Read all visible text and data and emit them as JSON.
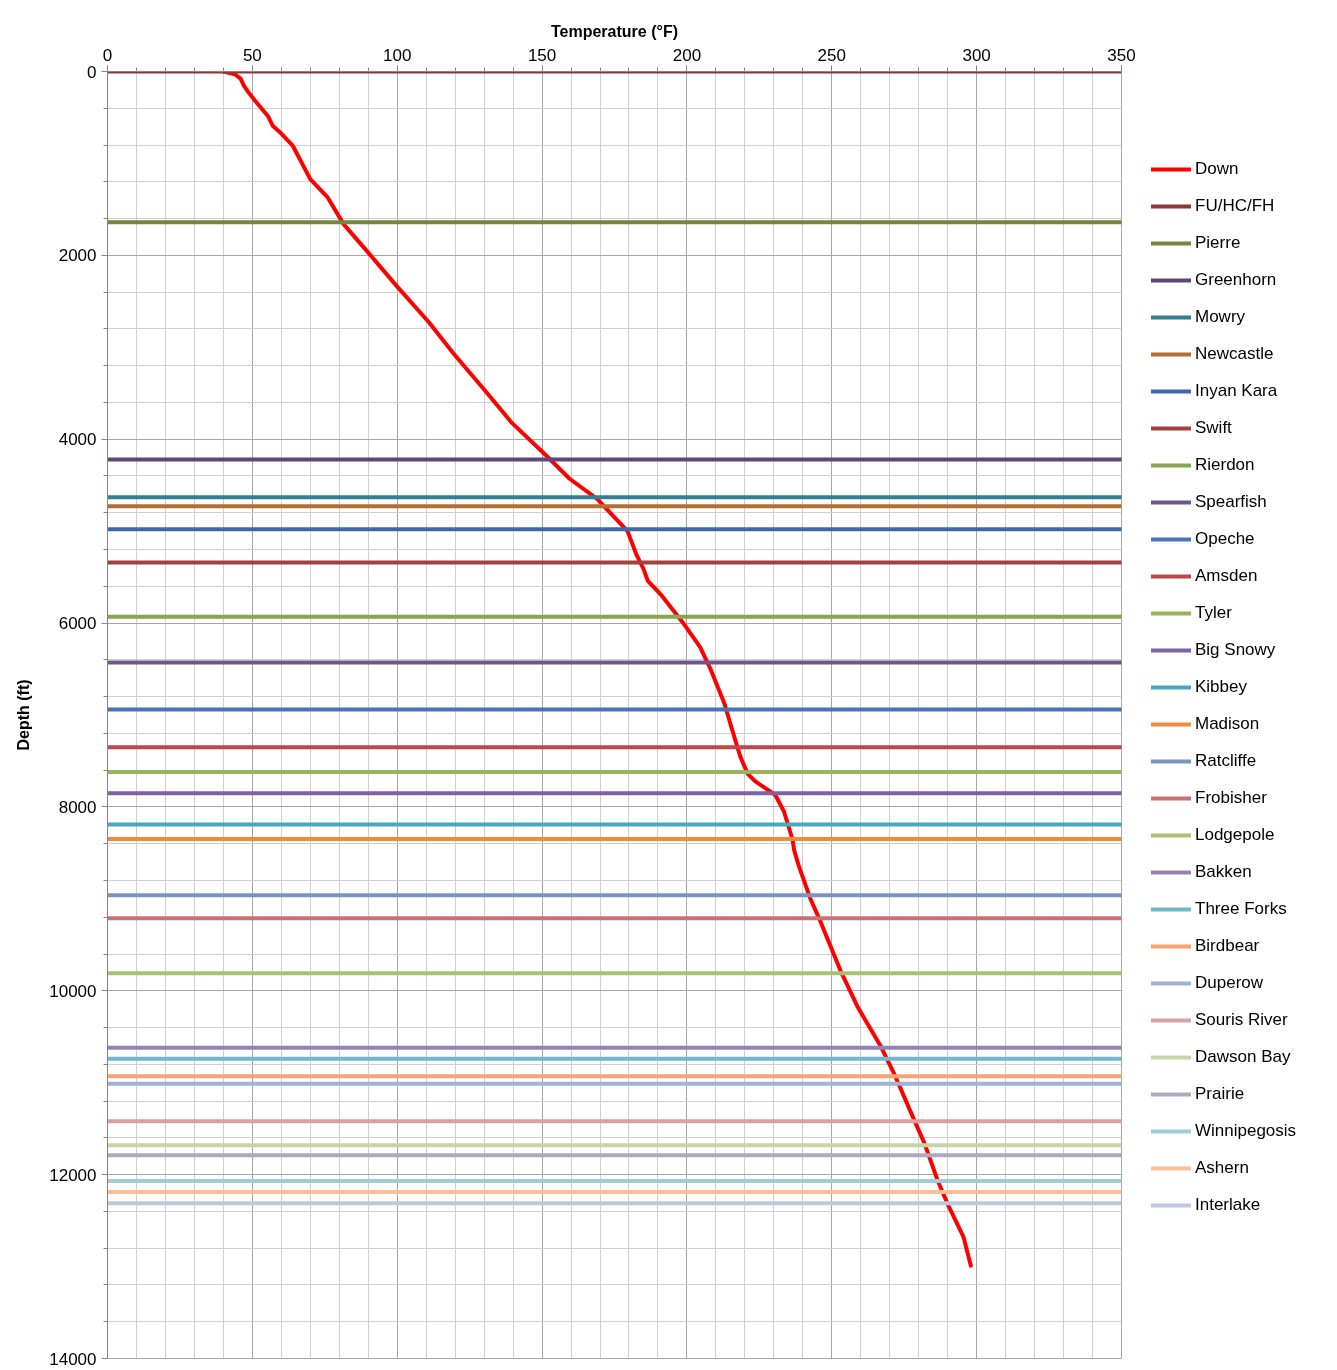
{
  "chart_data": {
    "type": "line",
    "xlabel": "Temperature (°F)",
    "ylabel": "Depth (ft)",
    "xlim": [
      0,
      350
    ],
    "xticks": [
      0,
      50,
      100,
      150,
      200,
      250,
      300,
      350
    ],
    "ylim": [
      14000,
      0
    ],
    "yticks": [
      0,
      2000,
      4000,
      6000,
      8000,
      10000,
      12000,
      14000
    ],
    "grid": true,
    "legend": "right",
    "line_style": "solid",
    "series": [
      {
        "name": "Down",
        "color": "#ff0000",
        "x": [
          40,
          44,
          46,
          47,
          48.5,
          51,
          55.5,
          57,
          59.5,
          64,
          70,
          76,
          81.5,
          90,
          100,
          111,
          119.5,
          130,
          139.5,
          151.5,
          159.5,
          169,
          179.5,
          182.5,
          185,
          186.5,
          191,
          198.5,
          204.5,
          208,
          213,
          215.5,
          218.5,
          221,
          223.5,
          230.5,
          233.5,
          236.5,
          237,
          238.5,
          242.5,
          246,
          253,
          259,
          267,
          271.5,
          278.5,
          282,
          286.5,
          290,
          295.5,
          298
        ],
        "values": [
          0,
          30,
          80,
          150,
          220,
          320,
          490,
          590,
          660,
          810,
          1170,
          1370,
          1660,
          1970,
          2340,
          2730,
          3070,
          3460,
          3820,
          4180,
          4430,
          4650,
          5000,
          5250,
          5410,
          5540,
          5690,
          5990,
          6260,
          6490,
          6880,
          7150,
          7460,
          7640,
          7720,
          7870,
          8050,
          8360,
          8470,
          8630,
          8990,
          9240,
          9780,
          10180,
          10610,
          10900,
          11410,
          11660,
          12060,
          12320,
          12680,
          12990
        ]
      },
      {
        "name": "FU/HC/FH",
        "color": "#8c3836",
        "x": [
          0,
          350
        ],
        "values": [
          0,
          0
        ]
      },
      {
        "name": "Pierre",
        "color": "#71893f",
        "x": [
          0,
          350
        ],
        "values": [
          1640,
          1640
        ]
      },
      {
        "name": "Greenhorn",
        "color": "#5c4776",
        "x": [
          0,
          350
        ],
        "values": [
          4220,
          4220
        ]
      },
      {
        "name": "Mowry",
        "color": "#357d91",
        "x": [
          0,
          350
        ],
        "values": [
          4630,
          4630
        ]
      },
      {
        "name": "Newcastle",
        "color": "#b66d31",
        "x": [
          0,
          350
        ],
        "values": [
          4730,
          4730
        ]
      },
      {
        "name": "Inyan Kara",
        "color": "#3d6aa6",
        "x": [
          0,
          350
        ],
        "values": [
          4980,
          4980
        ]
      },
      {
        "name": "Swift",
        "color": "#a33f3c",
        "x": [
          0,
          350
        ],
        "values": [
          5340,
          5340
        ]
      },
      {
        "name": "Rierdon",
        "color": "#89a54e",
        "x": [
          0,
          350
        ],
        "values": [
          5930,
          5930
        ]
      },
      {
        "name": "Spearfish",
        "color": "#6e568c",
        "x": [
          0,
          350
        ],
        "values": [
          6430,
          6430
        ]
      },
      {
        "name": "Opeche",
        "color": "#4674b5",
        "x": [
          0,
          350
        ],
        "values": [
          6940,
          6940
        ]
      },
      {
        "name": "Amsden",
        "color": "#b9494a",
        "x": [
          0,
          350
        ],
        "values": [
          7350,
          7350
        ]
      },
      {
        "name": "Tyler",
        "color": "#95b45c",
        "x": [
          0,
          350
        ],
        "values": [
          7620,
          7620
        ]
      },
      {
        "name": "Big Snowy",
        "color": "#7c62a2",
        "x": [
          0,
          350
        ],
        "values": [
          7850,
          7850
        ]
      },
      {
        "name": "Kibbey",
        "color": "#48a8c4",
        "x": [
          0,
          350
        ],
        "values": [
          8190,
          8190
        ]
      },
      {
        "name": "Madison",
        "color": "#f08b3c",
        "x": [
          0,
          350
        ],
        "values": [
          8350,
          8350
        ]
      },
      {
        "name": "Ratcliffe",
        "color": "#7894c4",
        "x": [
          0,
          350
        ],
        "values": [
          8960,
          8960
        ]
      },
      {
        "name": "Frobisher",
        "color": "#c87372",
        "x": [
          0,
          350
        ],
        "values": [
          9210,
          9210
        ]
      },
      {
        "name": "Lodgepole",
        "color": "#a7c273",
        "x": [
          0,
          350
        ],
        "values": [
          9810,
          9810
        ]
      },
      {
        "name": "Bakken",
        "color": "#9583b5",
        "x": [
          0,
          350
        ],
        "values": [
          10620,
          10620
        ]
      },
      {
        "name": "Three Forks",
        "color": "#70b8cd",
        "x": [
          0,
          350
        ],
        "values": [
          10740,
          10740
        ]
      },
      {
        "name": "Birdbear",
        "color": "#f9a46e",
        "x": [
          0,
          350
        ],
        "values": [
          10930,
          10930
        ]
      },
      {
        "name": "Duperow",
        "color": "#9fb3d6",
        "x": [
          0,
          350
        ],
        "values": [
          11010,
          11010
        ]
      },
      {
        "name": "Souris River",
        "color": "#d8a2a1",
        "x": [
          0,
          350
        ],
        "values": [
          11420,
          11420
        ]
      },
      {
        "name": "Dawson Bay",
        "color": "#c3d6a6",
        "x": [
          0,
          350
        ],
        "values": [
          11680,
          11680
        ]
      },
      {
        "name": "Prairie",
        "color": "#b2a6c6",
        "x": [
          0,
          350
        ],
        "values": [
          11790,
          11790
        ]
      },
      {
        "name": "Winnipegosis",
        "color": "#a0ccd9",
        "x": [
          0,
          350
        ],
        "values": [
          12070,
          12070
        ]
      },
      {
        "name": "Ashern",
        "color": "#f9bd97",
        "x": [
          0,
          350
        ],
        "values": [
          12190,
          12190
        ]
      },
      {
        "name": "Interlake",
        "color": "#b9c9df",
        "x": [
          0,
          350
        ],
        "values": [
          12310,
          12310
        ]
      }
    ]
  }
}
